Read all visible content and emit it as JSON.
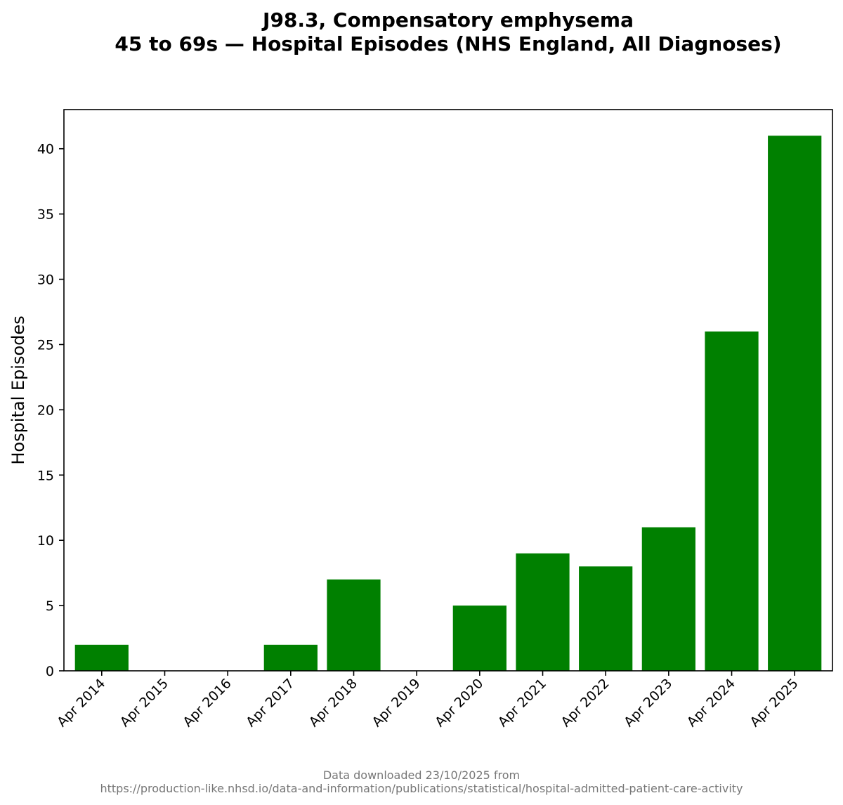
{
  "title_line1": "J98.3, Compensatory emphysema",
  "title_line2": "45 to 69s — Hospital Episodes (NHS England, All Diagnoses)",
  "footer_line1": "Data downloaded 23/10/2025 from",
  "footer_line2": "https://production-like.nhsd.io/data-and-information/publications/statistical/hospital-admitted-patient-care-activity",
  "chart_data": {
    "type": "bar",
    "title": "J98.3, Compensatory emphysema\n45 to 69s — Hospital Episodes (NHS England, All Diagnoses)",
    "xlabel": "",
    "ylabel": "Hospital Episodes",
    "categories": [
      "Apr 2014",
      "Apr 2015",
      "Apr 2016",
      "Apr 2017",
      "Apr 2018",
      "Apr 2019",
      "Apr 2020",
      "Apr 2021",
      "Apr 2022",
      "Apr 2023",
      "Apr 2024",
      "Apr 2025"
    ],
    "values": [
      2,
      0,
      0,
      2,
      7,
      0,
      5,
      9,
      8,
      11,
      26,
      41
    ],
    "ylim": [
      0,
      43
    ],
    "yticks": [
      0,
      5,
      10,
      15,
      20,
      25,
      30,
      35,
      40
    ],
    "bar_color": "#008000",
    "grid": false,
    "legend": "none"
  }
}
